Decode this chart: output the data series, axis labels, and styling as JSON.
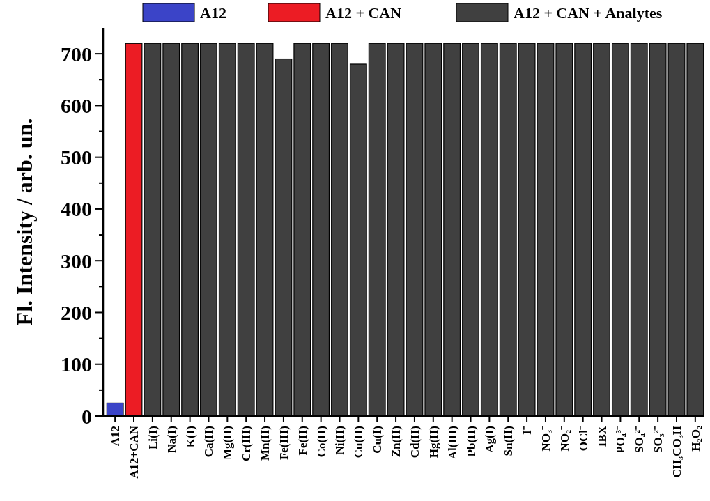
{
  "chart_data": {
    "type": "bar",
    "ylabel": "Fl. Intensity / arb. un.",
    "categories": [
      "A12",
      "A12+CAN",
      "Li(I)",
      "Na(I)",
      "K(I)",
      "Ca(II)",
      "Mg(II)",
      "Cr(III)",
      "Mn(II)",
      "Fe(III)",
      "Fe(II)",
      "Co(II)",
      "Ni(II)",
      "Cu(II)",
      "Cu(I)",
      "Zn(II)",
      "Cd(II)",
      "Hg(II)",
      "Al(III)",
      "Pb(II)",
      "Ag(I)",
      "Sn(II)",
      "I⁻",
      "NO₃⁻",
      "NO₂⁻",
      "OCl⁻",
      "IBX",
      "PO₄³⁻",
      "SO₄²⁻",
      "SO₃²⁻",
      "CH₃CO₃H",
      "H₂O₂"
    ],
    "series": [
      {
        "name": "A12",
        "color": "#3b44c8",
        "values": [
          25,
          null,
          null,
          null,
          null,
          null,
          null,
          null,
          null,
          null,
          null,
          null,
          null,
          null,
          null,
          null,
          null,
          null,
          null,
          null,
          null,
          null,
          null,
          null,
          null,
          null,
          null,
          null,
          null,
          null,
          null,
          null
        ]
      },
      {
        "name": "A12 + CAN",
        "color": "#ec1c24",
        "values": [
          null,
          720,
          null,
          null,
          null,
          null,
          null,
          null,
          null,
          null,
          null,
          null,
          null,
          null,
          null,
          null,
          null,
          null,
          null,
          null,
          null,
          null,
          null,
          null,
          null,
          null,
          null,
          null,
          null,
          null,
          null,
          null
        ]
      },
      {
        "name": "A12 + CAN + Analytes",
        "color": "#404040",
        "values": [
          null,
          null,
          720,
          720,
          720,
          720,
          720,
          720,
          720,
          690,
          720,
          720,
          720,
          680,
          720,
          720,
          720,
          720,
          720,
          720,
          720,
          720,
          720,
          720,
          720,
          720,
          720,
          720,
          720,
          720,
          720,
          720
        ]
      }
    ],
    "ylim": [
      0,
      750
    ],
    "yticks": [
      0,
      {
        "value": 50,
        "label": null
      },
      100,
      {
        "value": 150,
        "label": null
      },
      200,
      {
        "value": 250,
        "label": null
      },
      300,
      {
        "value": 350,
        "label": null
      },
      400,
      {
        "value": 450,
        "label": null
      },
      500,
      {
        "value": 550,
        "label": null
      },
      600,
      {
        "value": 650,
        "label": null
      },
      700
    ],
    "legend": "top",
    "grid": false
  }
}
